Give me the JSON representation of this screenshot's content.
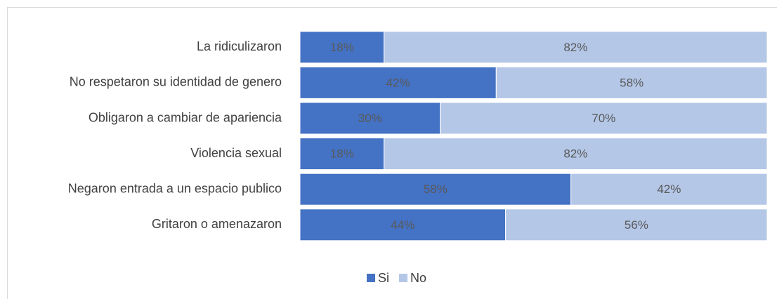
{
  "chart_data": {
    "type": "stacked_bar_horizontal",
    "categories": [
      "La ridiculizaron",
      "No respetaron su identidad de genero",
      "Obligaron a cambiar de apariencia",
      "Violencia sexual",
      "Negaron entrada a un espacio publico",
      "Gritaron o amenazaron"
    ],
    "series": [
      {
        "name": "Si",
        "color": "#4472c4",
        "values": [
          18,
          42,
          30,
          18,
          58,
          44
        ],
        "value_labels": [
          "18%",
          "42%",
          "30%",
          "18%",
          "58%",
          "44%"
        ]
      },
      {
        "name": "No",
        "color": "#b4c7e7",
        "values": [
          82,
          58,
          70,
          82,
          42,
          56
        ],
        "value_labels": [
          "82%",
          "58%",
          "70%",
          "82%",
          "42%",
          "56%"
        ]
      }
    ],
    "xlim": [
      0,
      100
    ],
    "legend": "bottom"
  }
}
